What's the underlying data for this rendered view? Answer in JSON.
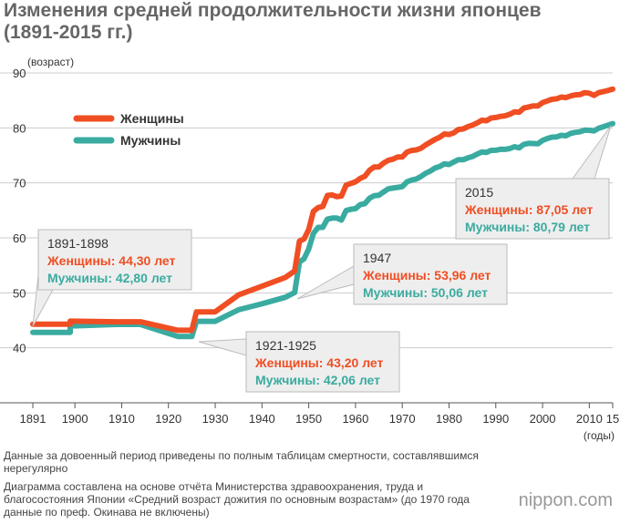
{
  "title": "Изменения средней продолжительности жизни японцев (1891-2015 гг.)",
  "notes": [
    "Данные за довоенный период приведены по полным таблицам смертности, составлявшимся нерегулярно",
    "Диаграмма составлена на основе отчёта Министерства здравоохранения, труда и благосостояния Японии «Средний возраст дожития по основным возрастам» (до 1970 года данные по преф. Окинава не включены)"
  ],
  "brand": "nippon.com",
  "colors": {
    "women": "#f04e23",
    "men": "#3aaba0",
    "grid": "#cccccc",
    "axis": "#555555"
  },
  "chart_data": {
    "type": "line",
    "title": "Изменения средней продолжительности жизни японцев (1891-2015 гг.)",
    "ylabel": "(возраст)",
    "xlabel": "(годы)",
    "ylim": [
      30,
      90
    ],
    "xlim": [
      1891,
      2015
    ],
    "yticks": [
      40,
      50,
      60,
      70,
      80,
      90
    ],
    "xticks": [
      {
        "v": 1891,
        "t": "1891"
      },
      {
        "v": 1900,
        "t": "1900"
      },
      {
        "v": 1910,
        "t": "1910"
      },
      {
        "v": 1920,
        "t": "1920"
      },
      {
        "v": 1930,
        "t": "1930"
      },
      {
        "v": 1940,
        "t": "1940"
      },
      {
        "v": 1950,
        "t": "1950"
      },
      {
        "v": 1960,
        "t": "1960"
      },
      {
        "v": 1970,
        "t": "1970"
      },
      {
        "v": 1980,
        "t": "1980"
      },
      {
        "v": 1990,
        "t": "1990"
      },
      {
        "v": 2000,
        "t": "2000"
      },
      {
        "v": 2010,
        "t": "2010"
      },
      {
        "v": 2015,
        "t": "15"
      }
    ],
    "legend": "top-left",
    "grid": true,
    "series": [
      {
        "name": "Женщины",
        "color": "#f04e23",
        "points": [
          [
            1891,
            44.3
          ],
          [
            1899,
            44.3
          ],
          [
            1899,
            44.85
          ],
          [
            1909,
            44.73
          ],
          [
            1914,
            44.73
          ],
          [
            1922,
            43.2
          ],
          [
            1925,
            43.2
          ],
          [
            1926,
            46.54
          ],
          [
            1930,
            46.54
          ],
          [
            1935,
            49.63
          ],
          [
            1940,
            51.2
          ],
          [
            1945,
            52.8
          ],
          [
            1947,
            53.96
          ],
          [
            1948,
            59.4
          ],
          [
            1949,
            59.8
          ],
          [
            1950,
            61.5
          ],
          [
            1951,
            64.8
          ],
          [
            1952,
            65.5
          ],
          [
            1953,
            65.7
          ],
          [
            1954,
            67.7
          ],
          [
            1955,
            67.8
          ],
          [
            1956,
            67.5
          ],
          [
            1957,
            67.6
          ],
          [
            1958,
            69.6
          ],
          [
            1959,
            69.9
          ],
          [
            1960,
            70.2
          ],
          [
            1961,
            70.8
          ],
          [
            1962,
            71.2
          ],
          [
            1963,
            72.3
          ],
          [
            1964,
            72.9
          ],
          [
            1965,
            72.9
          ],
          [
            1966,
            73.6
          ],
          [
            1967,
            74.1
          ],
          [
            1968,
            74.3
          ],
          [
            1969,
            74.7
          ],
          [
            1970,
            74.7
          ],
          [
            1971,
            75.6
          ],
          [
            1972,
            75.9
          ],
          [
            1973,
            76.0
          ],
          [
            1974,
            76.3
          ],
          [
            1975,
            76.9
          ],
          [
            1976,
            77.4
          ],
          [
            1977,
            77.9
          ],
          [
            1978,
            78.3
          ],
          [
            1979,
            78.9
          ],
          [
            1980,
            78.8
          ],
          [
            1981,
            79.1
          ],
          [
            1982,
            79.7
          ],
          [
            1983,
            79.8
          ],
          [
            1984,
            80.2
          ],
          [
            1985,
            80.5
          ],
          [
            1986,
            80.9
          ],
          [
            1987,
            81.4
          ],
          [
            1988,
            81.3
          ],
          [
            1989,
            81.8
          ],
          [
            1990,
            81.9
          ],
          [
            1991,
            82.1
          ],
          [
            1992,
            82.2
          ],
          [
            1993,
            82.5
          ],
          [
            1994,
            82.9
          ],
          [
            1995,
            82.85
          ],
          [
            1996,
            83.6
          ],
          [
            1997,
            83.8
          ],
          [
            1998,
            84.0
          ],
          [
            1999,
            83.99
          ],
          [
            2000,
            84.6
          ],
          [
            2001,
            84.9
          ],
          [
            2002,
            85.2
          ],
          [
            2003,
            85.3
          ],
          [
            2004,
            85.6
          ],
          [
            2005,
            85.5
          ],
          [
            2006,
            85.8
          ],
          [
            2007,
            86.0
          ],
          [
            2008,
            86.05
          ],
          [
            2009,
            86.4
          ],
          [
            2010,
            86.3
          ],
          [
            2011,
            85.9
          ],
          [
            2012,
            86.4
          ],
          [
            2013,
            86.6
          ],
          [
            2014,
            86.8
          ],
          [
            2015,
            87.05
          ]
        ]
      },
      {
        "name": "Мужчины",
        "color": "#3aaba0",
        "points": [
          [
            1891,
            42.8
          ],
          [
            1899,
            42.8
          ],
          [
            1899,
            43.97
          ],
          [
            1909,
            44.25
          ],
          [
            1914,
            44.25
          ],
          [
            1922,
            42.06
          ],
          [
            1925,
            42.06
          ],
          [
            1926,
            44.82
          ],
          [
            1930,
            44.82
          ],
          [
            1935,
            46.92
          ],
          [
            1940,
            48.0
          ],
          [
            1945,
            49.2
          ],
          [
            1947,
            50.06
          ],
          [
            1948,
            55.6
          ],
          [
            1949,
            56.2
          ],
          [
            1950,
            58.0
          ],
          [
            1951,
            60.8
          ],
          [
            1952,
            61.9
          ],
          [
            1953,
            61.9
          ],
          [
            1954,
            63.41
          ],
          [
            1955,
            63.6
          ],
          [
            1956,
            63.59
          ],
          [
            1957,
            63.24
          ],
          [
            1958,
            64.98
          ],
          [
            1959,
            65.21
          ],
          [
            1960,
            65.32
          ],
          [
            1961,
            66.03
          ],
          [
            1962,
            66.23
          ],
          [
            1963,
            67.21
          ],
          [
            1964,
            67.67
          ],
          [
            1965,
            67.74
          ],
          [
            1966,
            68.35
          ],
          [
            1967,
            68.91
          ],
          [
            1968,
            69.05
          ],
          [
            1969,
            69.18
          ],
          [
            1970,
            69.31
          ],
          [
            1971,
            70.17
          ],
          [
            1972,
            70.5
          ],
          [
            1973,
            70.7
          ],
          [
            1974,
            71.16
          ],
          [
            1975,
            71.73
          ],
          [
            1976,
            72.15
          ],
          [
            1977,
            72.69
          ],
          [
            1978,
            72.97
          ],
          [
            1979,
            73.46
          ],
          [
            1980,
            73.35
          ],
          [
            1981,
            73.79
          ],
          [
            1982,
            74.22
          ],
          [
            1983,
            74.2
          ],
          [
            1984,
            74.54
          ],
          [
            1985,
            74.78
          ],
          [
            1986,
            75.23
          ],
          [
            1987,
            75.61
          ],
          [
            1988,
            75.54
          ],
          [
            1989,
            75.91
          ],
          [
            1990,
            75.92
          ],
          [
            1991,
            76.11
          ],
          [
            1992,
            76.09
          ],
          [
            1993,
            76.25
          ],
          [
            1994,
            76.57
          ],
          [
            1995,
            76.38
          ],
          [
            1996,
            77.01
          ],
          [
            1997,
            77.19
          ],
          [
            1998,
            77.16
          ],
          [
            1999,
            77.1
          ],
          [
            2000,
            77.72
          ],
          [
            2001,
            78.07
          ],
          [
            2002,
            78.32
          ],
          [
            2003,
            78.36
          ],
          [
            2004,
            78.64
          ],
          [
            2005,
            78.56
          ],
          [
            2006,
            79.0
          ],
          [
            2007,
            79.19
          ],
          [
            2008,
            79.29
          ],
          [
            2009,
            79.59
          ],
          [
            2010,
            79.55
          ],
          [
            2011,
            79.44
          ],
          [
            2012,
            79.94
          ],
          [
            2013,
            80.21
          ],
          [
            2014,
            80.5
          ],
          [
            2015,
            80.79
          ]
        ]
      }
    ],
    "annotations": [
      {
        "period": "1891-1898",
        "women": "Женщины: 44,30 лет",
        "men": "Мужчины: 42,80 лет"
      },
      {
        "period": "1921-1925",
        "women": "Женщины: 43,20 лет",
        "men": "Мужчины: 42,06 лет"
      },
      {
        "period": "1947",
        "women": "Женщины: 53,96 лет",
        "men": "Мужчины: 50,06 лет"
      },
      {
        "period": "2015",
        "women": "Женщины: 87,05 лет",
        "men": "Мужчины: 80,79 лет"
      }
    ]
  }
}
